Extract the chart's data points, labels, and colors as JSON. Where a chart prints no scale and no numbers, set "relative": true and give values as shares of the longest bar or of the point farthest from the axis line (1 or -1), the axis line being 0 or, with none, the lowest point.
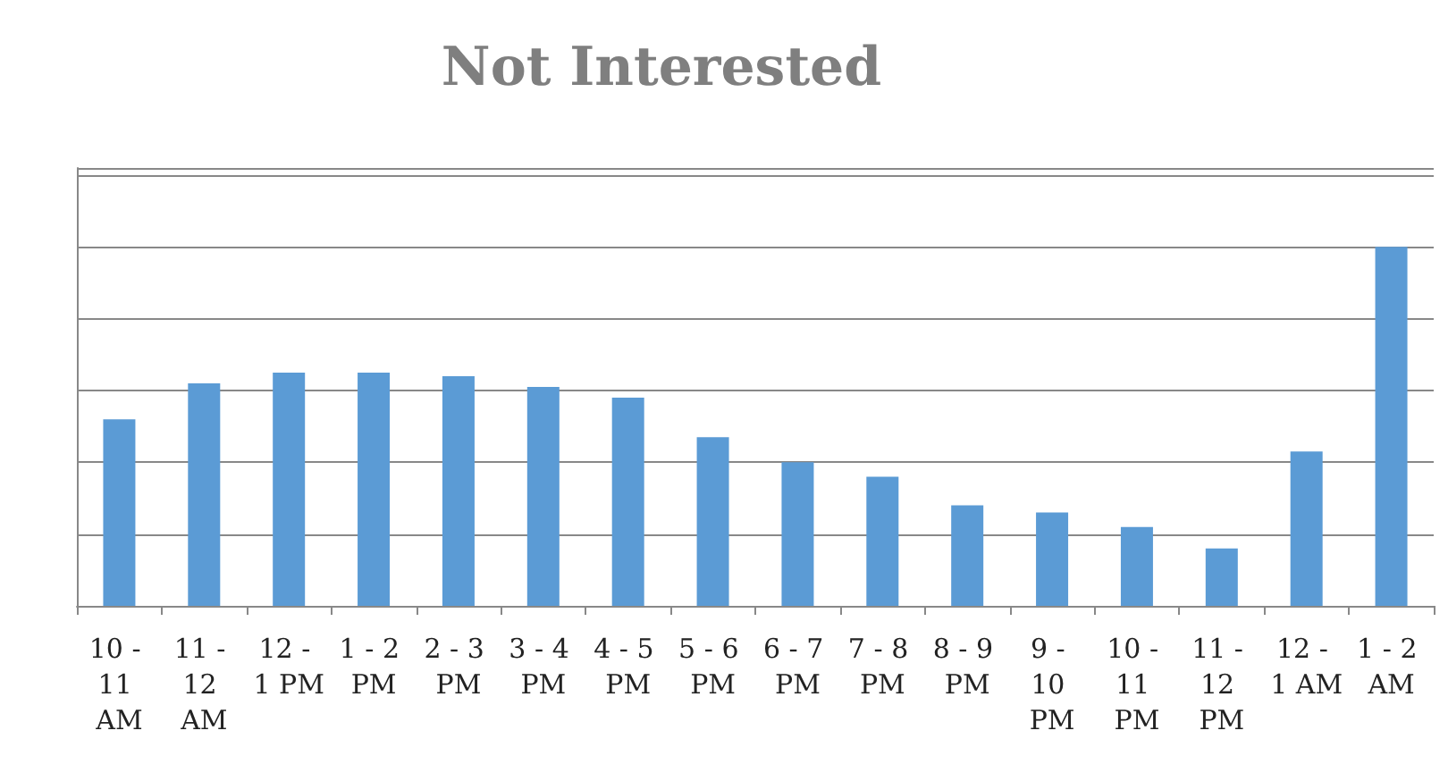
{
  "chart_data": {
    "type": "bar",
    "title": "Not Interested",
    "relative": true,
    "grid": "y",
    "categories": [
      "10 - 11 AM",
      "11 - 12 AM",
      "12 - 1 PM",
      "1 - 2 PM",
      "2 - 3 PM",
      "3 - 4 PM",
      "4 - 5 PM",
      "5 - 6 PM",
      "6 - 7 PM",
      "7 - 8 PM",
      "8 - 9 PM",
      "9 - 10 PM",
      "10 - 11 PM",
      "11 - 12 PM",
      "12 - 1 AM",
      "1 - 2 AM"
    ],
    "values": [
      0.52,
      0.62,
      0.65,
      0.65,
      0.64,
      0.61,
      0.58,
      0.47,
      0.4,
      0.36,
      0.28,
      0.26,
      0.22,
      0.16,
      0.43,
      1
    ],
    "color": "#5b9bd5"
  }
}
